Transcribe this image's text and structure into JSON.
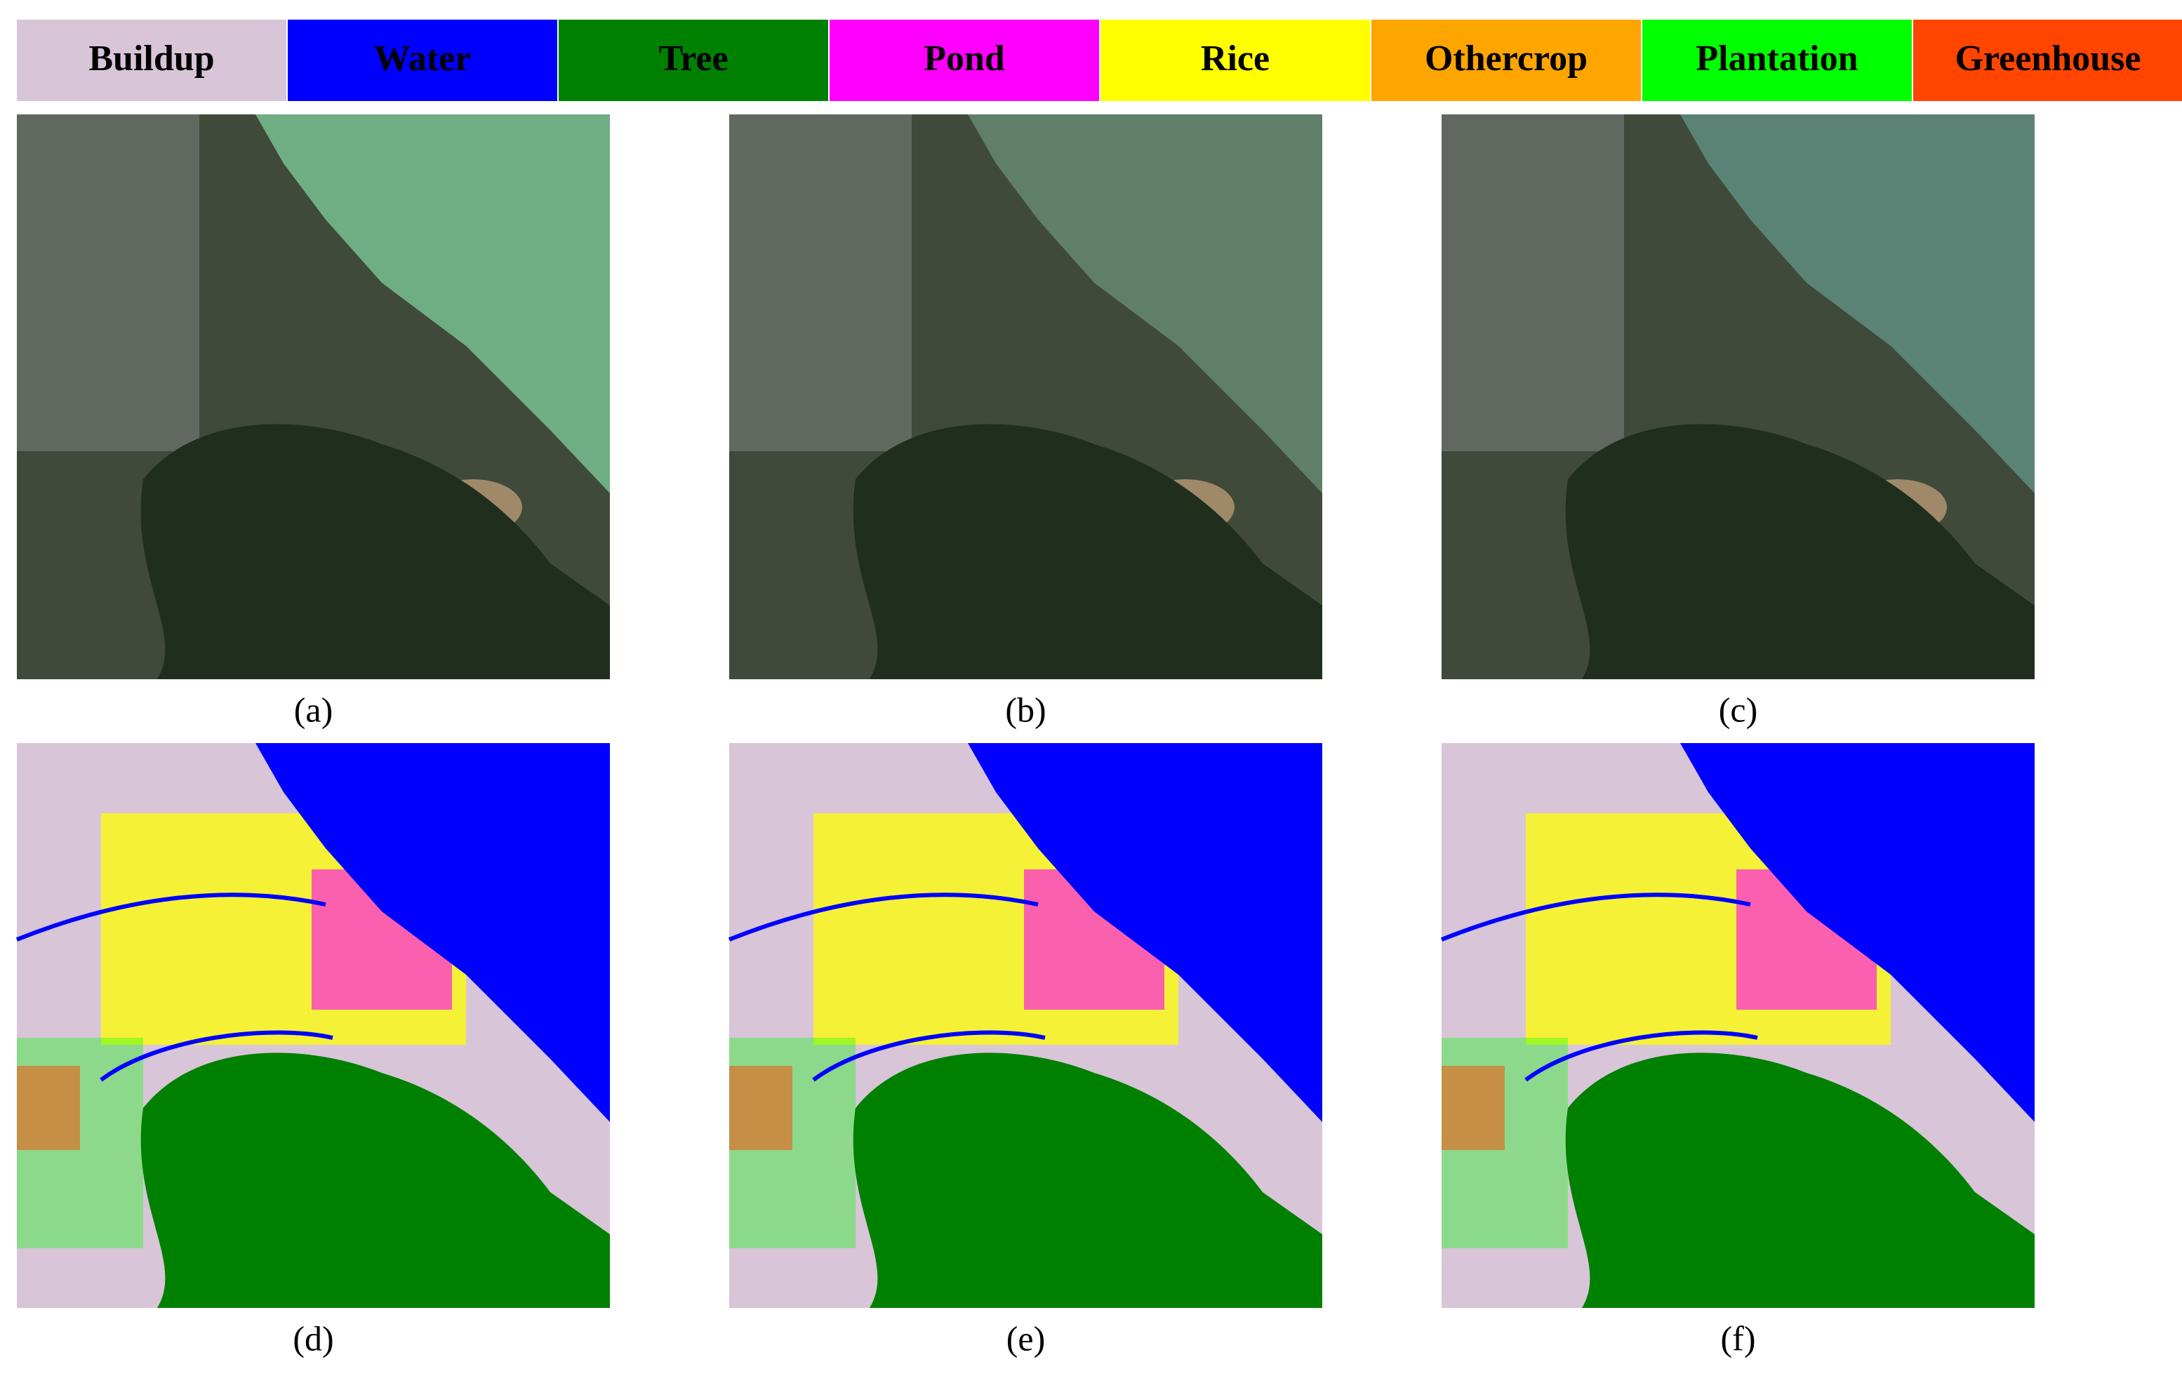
{
  "legend": [
    {
      "label": "Buildup",
      "color": "#d8c5d8"
    },
    {
      "label": "Water",
      "color": "#0000ff"
    },
    {
      "label": "Tree",
      "color": "#008000"
    },
    {
      "label": "Pond",
      "color": "#ff00ff"
    },
    {
      "label": "Rice",
      "color": "#ffff00"
    },
    {
      "label": "Othercrop",
      "color": "#ffa500"
    },
    {
      "label": "Plantation",
      "color": "#00ff00"
    },
    {
      "label": "Greenhouse",
      "color": "#ff4500"
    }
  ],
  "panels": [
    {
      "caption": "(a)"
    },
    {
      "caption": "(b)"
    },
    {
      "caption": "(c)"
    },
    {
      "caption": "(d)"
    },
    {
      "caption": "(e)"
    },
    {
      "caption": "(f)"
    }
  ]
}
